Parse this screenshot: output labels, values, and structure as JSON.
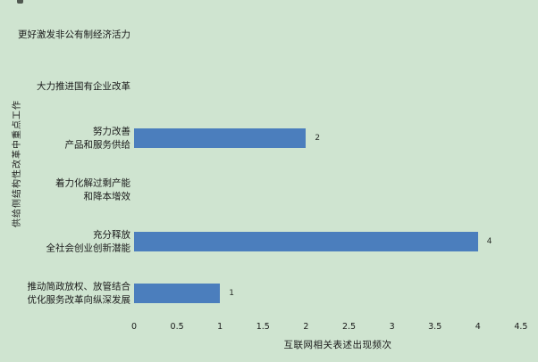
{
  "background_color": "#cfe4d0",
  "text_color": "#1a1a1a",
  "chart_data": {
    "type": "bar",
    "orientation": "horizontal",
    "title": "",
    "xlabel": "互联网相关表述出现频次",
    "ylabel": "供给侧结构性改革中重点工作",
    "categories": [
      "更好激发非公有制经济活力",
      "大力推进国有企业改革",
      "努力改善产品和服务供给",
      "着力化解过剩产能和降本增效",
      "充分释放全社会创业创新潜能",
      "推动简政放权、放管结合优化服务改革向纵深发展"
    ],
    "display_labels": [
      [
        "更好激发非公有制经济活力"
      ],
      [
        "大力推进国有企业改革"
      ],
      [
        "努力改善",
        "产品和服务供给"
      ],
      [
        "着力化解过剩产能",
        "和降本增效"
      ],
      [
        "充分释放",
        "全社会创业创新潜能"
      ],
      [
        "推动简政放权、放管结合",
        "优化服务改革向纵深发展"
      ]
    ],
    "values": [
      0,
      0,
      2,
      0,
      4,
      1
    ],
    "data_labels": [
      "",
      "",
      "2",
      "",
      "4",
      "1"
    ],
    "x_ticks": [
      "0",
      "0.5",
      "1",
      "1.5",
      "2",
      "2.5",
      "3",
      "3.5",
      "4",
      "4.5"
    ],
    "xlim": [
      0,
      4.5
    ],
    "bar_color": "#4b7ebd",
    "grid": false,
    "legend": false
  }
}
